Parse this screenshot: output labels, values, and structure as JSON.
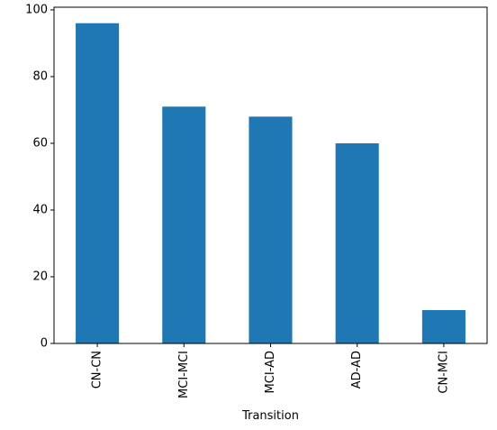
{
  "chart_data": {
    "type": "bar",
    "categories": [
      "CN-CN",
      "MCI-MCI",
      "MCI-AD",
      "AD-AD",
      "CN-MCI"
    ],
    "values": [
      96,
      71,
      68,
      60,
      10
    ],
    "title": "",
    "xlabel": "Transition",
    "ylabel": "",
    "ylim": [
      0,
      100.8
    ],
    "yticks": [
      0,
      20,
      40,
      60,
      80,
      100
    ],
    "grid": false,
    "legend": "none",
    "bar_color": "#1f77b4",
    "axis_color": "#000000"
  }
}
